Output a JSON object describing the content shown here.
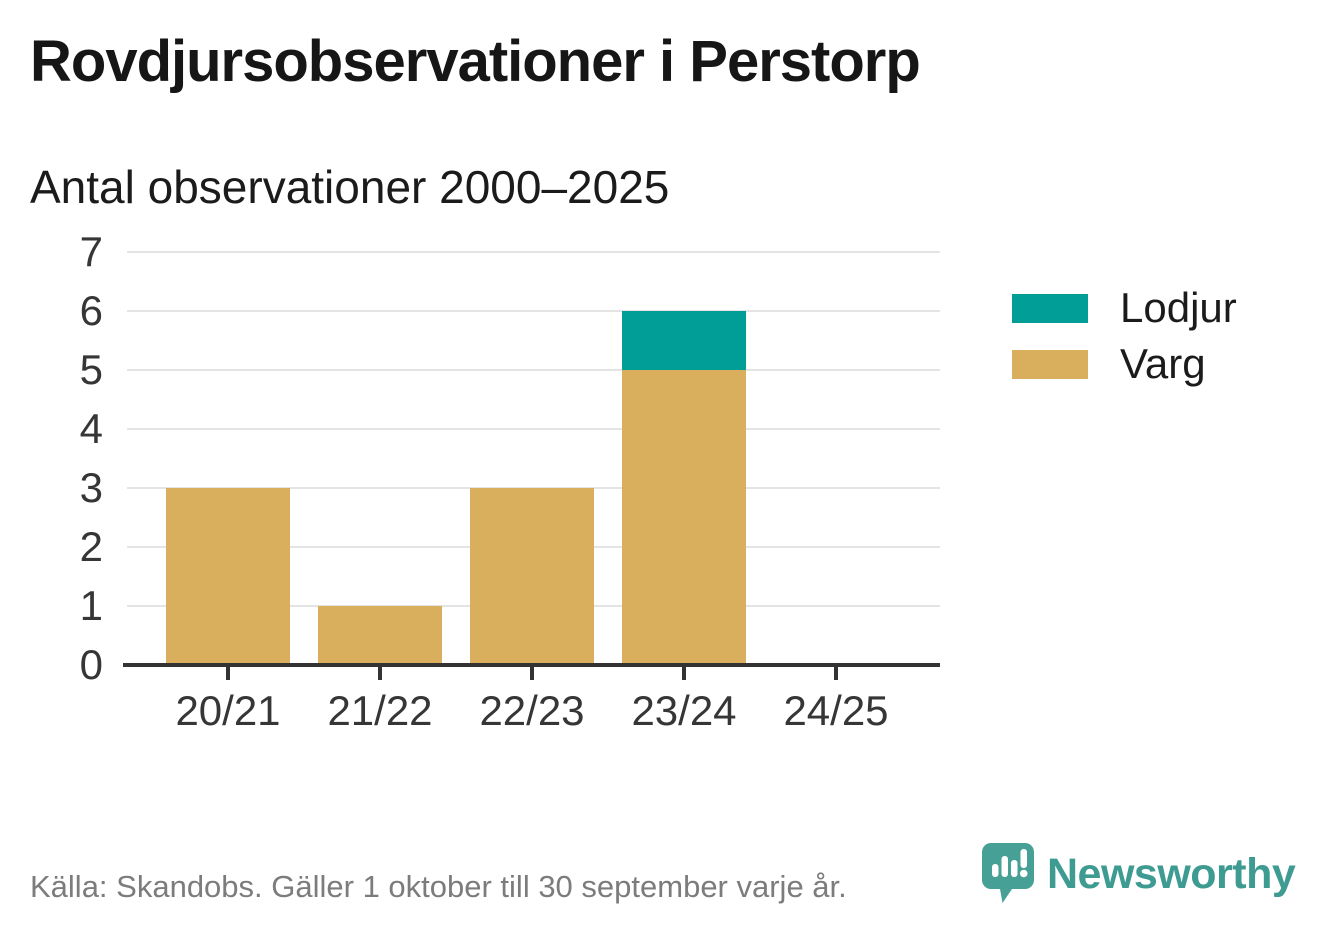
{
  "header": {
    "title": "Rovdjursobservationer i Perstorp"
  },
  "chart_data": {
    "type": "bar",
    "stacked": true,
    "title": "Antal observationer 2000–2025",
    "categories": [
      "20/21",
      "21/22",
      "22/23",
      "23/24",
      "24/25"
    ],
    "series": [
      {
        "name": "Varg",
        "color": "#d9ae5c",
        "values": [
          3,
          1,
          3,
          5,
          0
        ]
      },
      {
        "name": "Lodjur",
        "color": "#009e96",
        "values": [
          0,
          0,
          0,
          1,
          0
        ]
      }
    ],
    "xlabel": "",
    "ylabel": "",
    "ylim": [
      0,
      7
    ],
    "yticks": [
      0,
      1,
      2,
      3,
      4,
      5,
      6,
      7
    ],
    "grid": "horizontal",
    "legend_position": "right"
  },
  "legend": {
    "items": [
      {
        "label": "Lodjur",
        "color": "#009e96"
      },
      {
        "label": "Varg",
        "color": "#d9ae5c"
      }
    ]
  },
  "footer": {
    "source": "Källa: Skandobs. Gäller 1 oktober till 30 september varje år.",
    "brand": "Newsworthy"
  },
  "icons": {
    "brand_logo": "newsworthy-speech-bubble-bar-chart-icon"
  },
  "colors": {
    "varg": "#d9ae5c",
    "lodjur": "#009e96",
    "brand_teal": "#47a096",
    "brand_text": "#3e9b92",
    "axis": "#333333",
    "gridline": "#e4e4e4",
    "text_dark": "#161616",
    "text_muted": "#7c7c7c"
  }
}
